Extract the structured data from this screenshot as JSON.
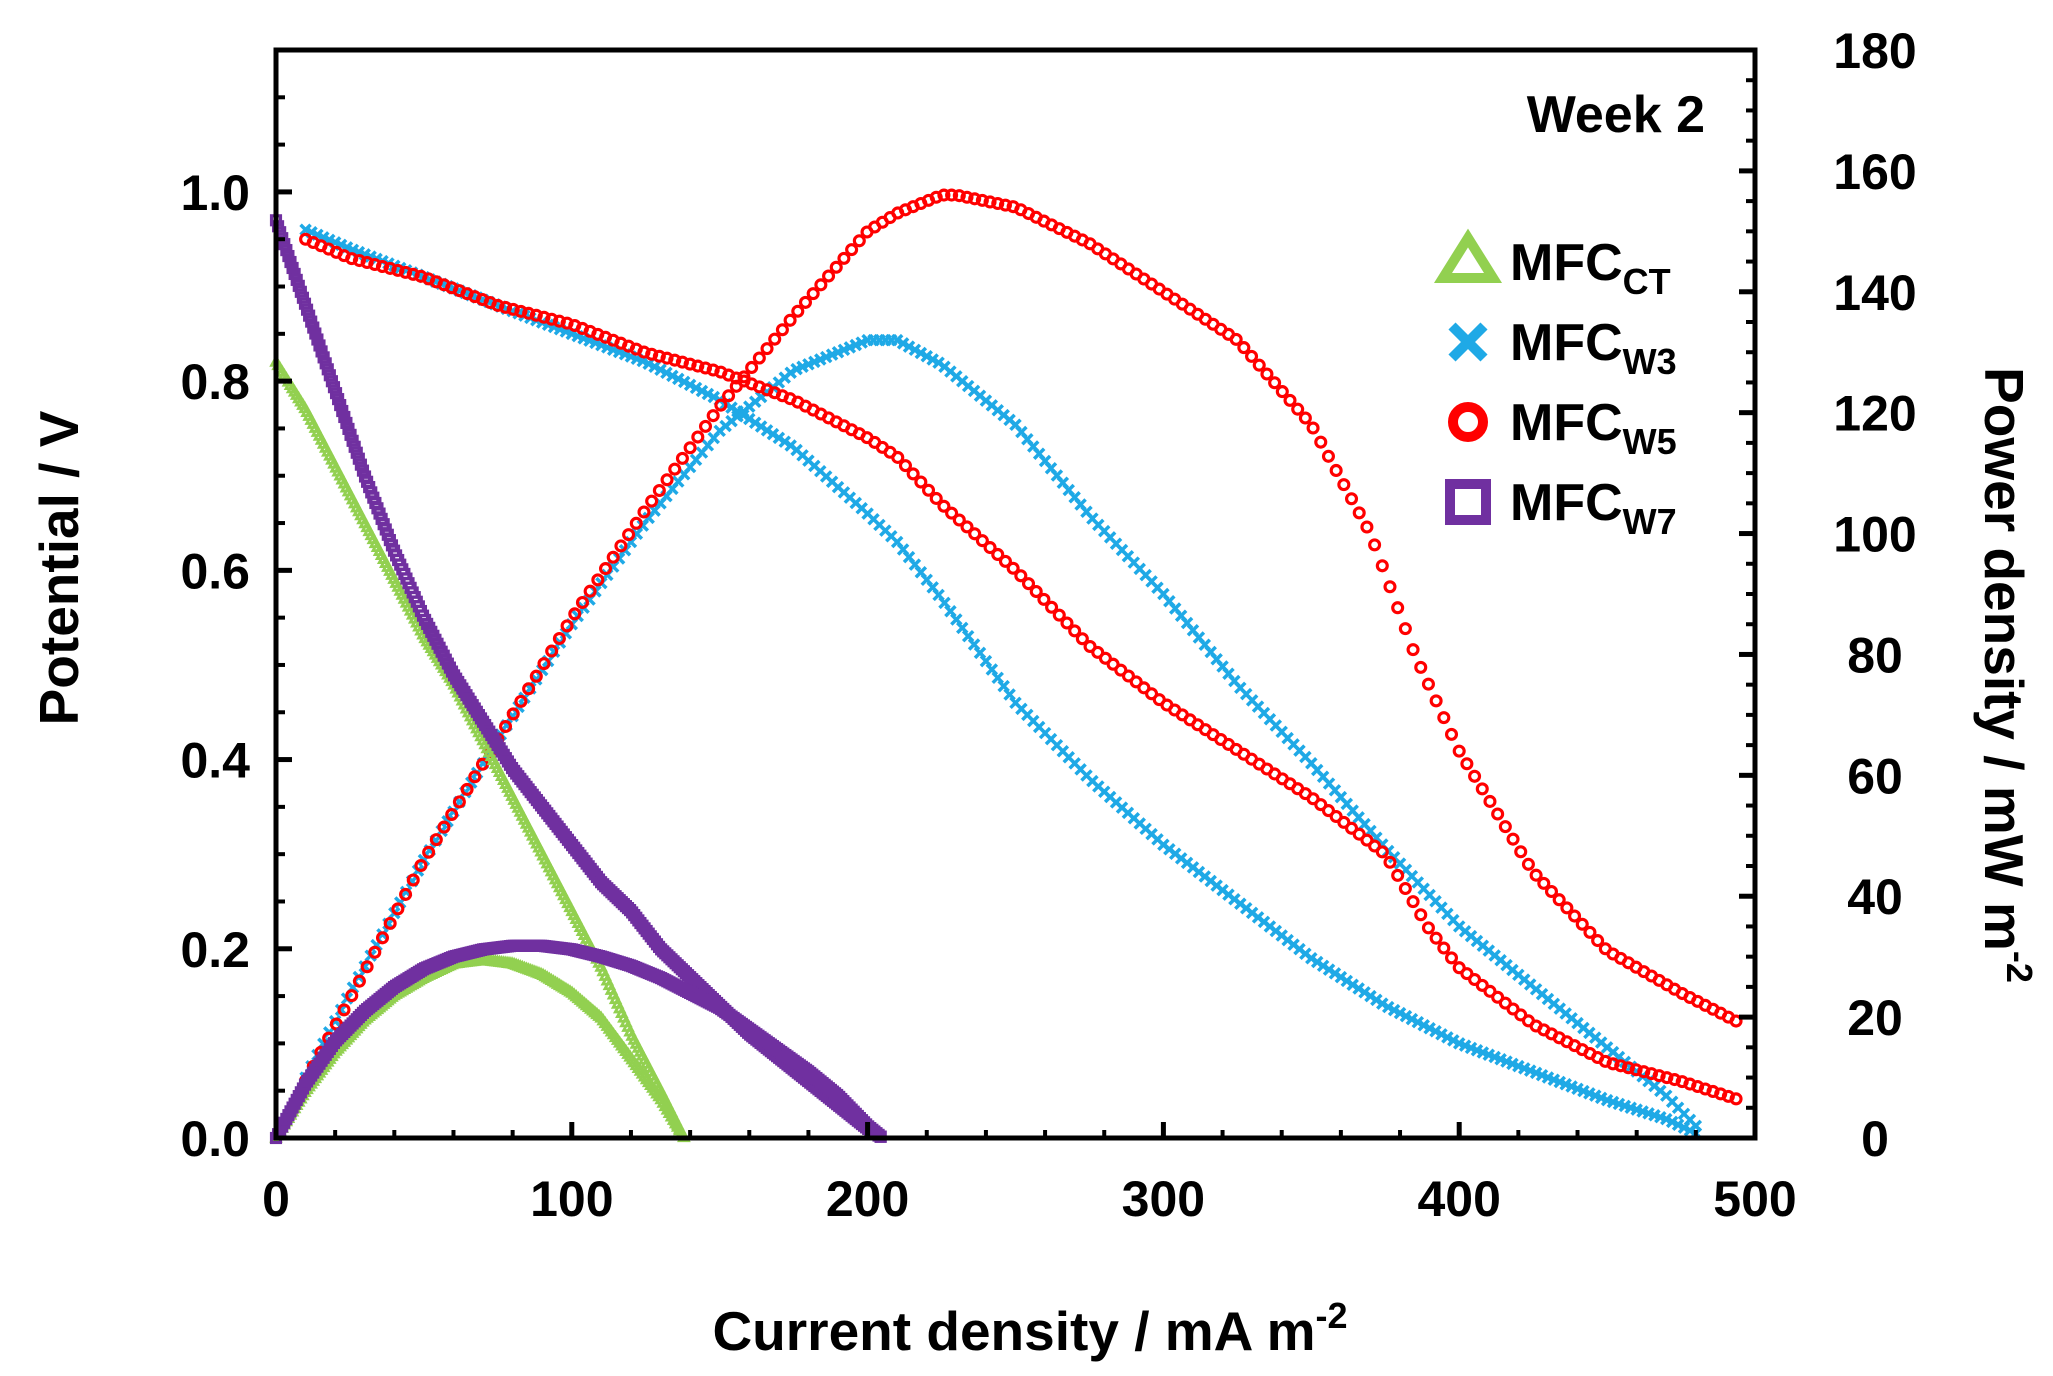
{
  "chart_data": {
    "type": "scatter",
    "annotation": "Week 2",
    "x_axis": {
      "label": "Current density / mA m",
      "label_sup": "-2",
      "range": [
        0,
        500
      ],
      "ticks": [
        "0",
        "100",
        "200",
        "300",
        "400",
        "500"
      ]
    },
    "y_axis_left": {
      "label": "Potential / V",
      "range": [
        0,
        1.15
      ],
      "ticks": [
        "0.0",
        "0.2",
        "0.4",
        "0.6",
        "0.8",
        "1.0"
      ]
    },
    "y_axis_right": {
      "label": "Power density / mW m",
      "label_sup": "-2",
      "range": [
        0,
        180
      ],
      "ticks": [
        "0",
        "20",
        "40",
        "60",
        "80",
        "100",
        "120",
        "140",
        "160",
        "180"
      ]
    },
    "legend": [
      {
        "key": "CT",
        "name": "MFC",
        "sub": "CT",
        "marker": "triangle",
        "color": "#92D050"
      },
      {
        "key": "W3",
        "name": "MFC",
        "sub": "W3",
        "marker": "x",
        "color": "#1FA9E6"
      },
      {
        "key": "W5",
        "name": "MFC",
        "sub": "W5",
        "marker": "circle",
        "color": "#FF0000"
      },
      {
        "key": "W7",
        "name": "MFC",
        "sub": "W7",
        "marker": "square",
        "color": "#7030A0"
      }
    ],
    "series": [
      {
        "name": "MFC CT",
        "type": "polarization",
        "axis": "left",
        "color": "#92D050",
        "marker": "triangle",
        "x": [
          0,
          10,
          20,
          30,
          40,
          50,
          60,
          70,
          80,
          90,
          100,
          110,
          120,
          130,
          138
        ],
        "y": [
          0.82,
          0.77,
          0.71,
          0.65,
          0.59,
          0.53,
          0.48,
          0.42,
          0.36,
          0.3,
          0.24,
          0.18,
          0.11,
          0.05,
          0.0
        ]
      },
      {
        "name": "MFC CT",
        "type": "power",
        "axis": "right",
        "color": "#92D050",
        "marker": "triangle",
        "x": [
          0,
          10,
          20,
          30,
          40,
          50,
          60,
          70,
          80,
          90,
          100,
          110,
          120,
          130,
          138
        ],
        "y": [
          0,
          7.7,
          14.2,
          19.5,
          23.6,
          26.5,
          28.8,
          29.4,
          28.8,
          27.0,
          24.0,
          19.8,
          13.2,
          6.5,
          0
        ]
      },
      {
        "name": "MFC W3",
        "type": "polarization",
        "axis": "left",
        "color": "#1FA9E6",
        "marker": "x",
        "x": [
          10,
          25,
          50,
          75,
          100,
          125,
          150,
          175,
          200,
          210,
          225,
          250,
          275,
          300,
          325,
          350,
          375,
          400,
          425,
          450,
          470,
          480
        ],
        "y": [
          0.96,
          0.94,
          0.91,
          0.88,
          0.85,
          0.82,
          0.78,
          0.73,
          0.66,
          0.63,
          0.57,
          0.46,
          0.38,
          0.31,
          0.25,
          0.19,
          0.14,
          0.1,
          0.07,
          0.04,
          0.02,
          0.005
        ]
      },
      {
        "name": "MFC W3",
        "type": "power",
        "axis": "right",
        "color": "#1FA9E6",
        "marker": "x",
        "x": [
          10,
          25,
          50,
          75,
          100,
          125,
          150,
          175,
          200,
          210,
          225,
          250,
          275,
          300,
          325,
          350,
          375,
          400,
          425,
          450,
          470,
          480
        ],
        "y": [
          10,
          24,
          46,
          66,
          85,
          102,
          117,
          127,
          132,
          132,
          128,
          118,
          103,
          90,
          75,
          62,
          48,
          35,
          25,
          15,
          7,
          2
        ]
      },
      {
        "name": "MFC W5",
        "type": "polarization",
        "axis": "left",
        "color": "#FF0000",
        "marker": "circle",
        "x": [
          10,
          25,
          50,
          75,
          100,
          125,
          150,
          175,
          200,
          210,
          225,
          250,
          275,
          300,
          325,
          350,
          375,
          390,
          400,
          425,
          450,
          475,
          495
        ],
        "y": [
          0.95,
          0.93,
          0.91,
          0.88,
          0.86,
          0.83,
          0.81,
          0.78,
          0.74,
          0.72,
          0.67,
          0.6,
          0.52,
          0.46,
          0.41,
          0.36,
          0.3,
          0.22,
          0.18,
          0.12,
          0.08,
          0.06,
          0.04
        ]
      },
      {
        "name": "MFC W5",
        "type": "power",
        "axis": "right",
        "color": "#FF0000",
        "marker": "circle",
        "x": [
          10,
          25,
          50,
          75,
          100,
          125,
          150,
          175,
          200,
          210,
          225,
          230,
          250,
          275,
          300,
          325,
          350,
          370,
          385,
          400,
          425,
          450,
          475,
          495
        ],
        "y": [
          9.5,
          23,
          46,
          66,
          86,
          104,
          121,
          136,
          150,
          153,
          156,
          156,
          154,
          148,
          140,
          132,
          118,
          100,
          80,
          64,
          44,
          31,
          24,
          19
        ]
      },
      {
        "name": "MFC W7",
        "type": "polarization",
        "axis": "left",
        "color": "#7030A0",
        "marker": "square",
        "x": [
          0,
          10,
          20,
          30,
          40,
          50,
          60,
          70,
          80,
          90,
          100,
          110,
          120,
          130,
          140,
          150,
          160,
          170,
          180,
          190,
          200,
          205
        ],
        "y": [
          0.97,
          0.88,
          0.79,
          0.7,
          0.62,
          0.55,
          0.49,
          0.44,
          0.39,
          0.35,
          0.31,
          0.27,
          0.24,
          0.2,
          0.17,
          0.14,
          0.11,
          0.085,
          0.06,
          0.035,
          0.01,
          0.0
        ]
      },
      {
        "name": "MFC W7",
        "type": "power",
        "axis": "right",
        "color": "#7030A0",
        "marker": "square",
        "x": [
          0,
          10,
          20,
          30,
          40,
          50,
          60,
          70,
          80,
          90,
          100,
          110,
          120,
          130,
          140,
          150,
          160,
          170,
          180,
          190,
          200,
          205
        ],
        "y": [
          0,
          9,
          16,
          21,
          25,
          28,
          30,
          31.2,
          31.8,
          31.8,
          31.2,
          30,
          28.5,
          26.5,
          24,
          21.5,
          18,
          14.5,
          11,
          7,
          2,
          0
        ]
      }
    ]
  }
}
